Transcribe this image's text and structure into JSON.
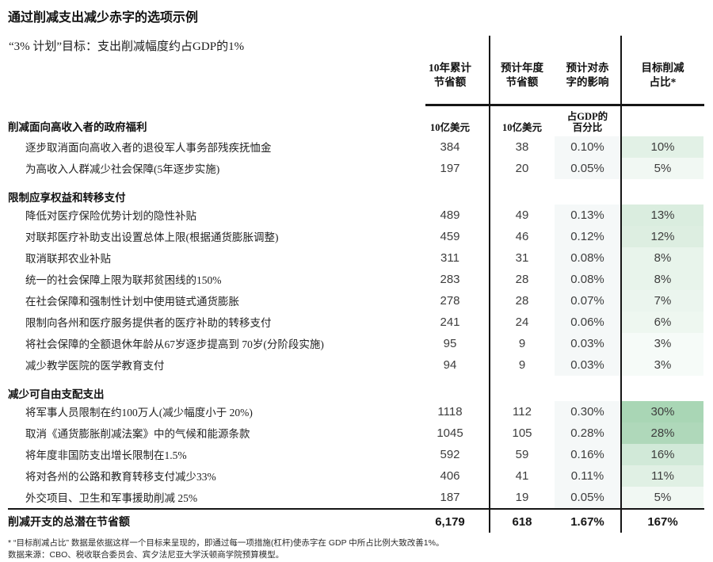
{
  "title": "通过削减支出减少赤字的选项示例",
  "subtitle": "“3% 计划”目标：支出削减幅度约占GDP的1%",
  "chart_data": {
    "type": "table",
    "title": "通过削减支出减少赤字的选项示例",
    "subtitle": "“3% 计划”目标：支出削减幅度约占GDP的1%",
    "columns": [
      {
        "label": "10年累计\n节省额",
        "unit": "10亿美元"
      },
      {
        "label": "预计年度\n节省额",
        "unit": "10亿美元"
      },
      {
        "label": "预计对赤\n字的影响",
        "unit": "占GDP的\n百分比"
      },
      {
        "label": "目标削减\n占比*",
        "unit": ""
      }
    ],
    "sections": [
      {
        "header": "削减面向高收入者的政府福利",
        "rows": [
          {
            "label": "逐步取消面向高收入者的退役军人事务部残疾抚恤金",
            "ten_year": "384",
            "annual": "38",
            "impact": "0.10%",
            "target": "10%",
            "target_value": 10
          },
          {
            "label": "为高收入人群减少社会保障(5年逐步实施)",
            "ten_year": "197",
            "annual": "20",
            "impact": "0.05%",
            "target": "5%",
            "target_value": 5
          }
        ]
      },
      {
        "header": "限制应享权益和转移支付",
        "rows": [
          {
            "label": "降低对医疗保险优势计划的隐性补贴",
            "ten_year": "489",
            "annual": "49",
            "impact": "0.13%",
            "target": "13%",
            "target_value": 13
          },
          {
            "label": "对联邦医疗补助支出设置总体上限(根据通货膨胀调整)",
            "ten_year": "459",
            "annual": "46",
            "impact": "0.12%",
            "target": "12%",
            "target_value": 12
          },
          {
            "label": "取消联邦农业补贴",
            "ten_year": "311",
            "annual": "31",
            "impact": "0.08%",
            "target": "8%",
            "target_value": 8
          },
          {
            "label": "统一的社会保障上限为联邦贫困线的150%",
            "ten_year": "283",
            "annual": "28",
            "impact": "0.08%",
            "target": "8%",
            "target_value": 8
          },
          {
            "label": "在社会保障和强制性计划中使用链式通货膨胀",
            "ten_year": "278",
            "annual": "28",
            "impact": "0.07%",
            "target": "7%",
            "target_value": 7
          },
          {
            "label": "限制向各州和医疗服务提供者的医疗补助的转移支付",
            "ten_year": "241",
            "annual": "24",
            "impact": "0.06%",
            "target": "6%",
            "target_value": 6
          },
          {
            "label": "将社会保障的全额退休年龄从67岁逐步提高到 70岁(分阶段实施)",
            "ten_year": "95",
            "annual": "9",
            "impact": "0.03%",
            "target": "3%",
            "target_value": 3
          },
          {
            "label": "减少教学医院的医学教育支付",
            "ten_year": "94",
            "annual": "9",
            "impact": "0.03%",
            "target": "3%",
            "target_value": 3
          }
        ]
      },
      {
        "header": "减少可自由支配支出",
        "rows": [
          {
            "label": "将军事人员限制在约100万人(减少幅度小于 20%)",
            "ten_year": "1118",
            "annual": "112",
            "impact": "0.30%",
            "target": "30%",
            "target_value": 30
          },
          {
            "label": "取消《通货膨胀削减法案》中的气候和能源条款",
            "ten_year": "1045",
            "annual": "105",
            "impact": "0.28%",
            "target": "28%",
            "target_value": 28
          },
          {
            "label": "将年度非国防支出增长限制在1.5%",
            "ten_year": "592",
            "annual": "59",
            "impact": "0.16%",
            "target": "16%",
            "target_value": 16
          },
          {
            "label": "将对各州的公路和教育转移支付减少33%",
            "ten_year": "406",
            "annual": "41",
            "impact": "0.11%",
            "target": "11%",
            "target_value": 11
          },
          {
            "label": "外交项目、卫生和军事援助削减 25%",
            "ten_year": "187",
            "annual": "19",
            "impact": "0.05%",
            "target": "5%",
            "target_value": 5
          }
        ]
      }
    ],
    "total": {
      "label": "削减开支的总潜在节省额",
      "ten_year": "6,179",
      "annual": "618",
      "impact": "1.67%",
      "target": "167%"
    },
    "colors": {
      "heat_base": "#3AA055",
      "heat_factor": 0.0145,
      "impact_col_bg": "#F5F8F8",
      "rule": "#161616"
    }
  },
  "footnotes": [
    "* “目标削减占比” 数据是依据这样一个目标来呈现的，即通过每一项措施(杠杆)使赤字在 GDP 中所占比例大致改善1%。",
    "数据来源：CBO、税收联合委员会、宾夕法尼亚大学沃顿商学院预算模型。"
  ]
}
